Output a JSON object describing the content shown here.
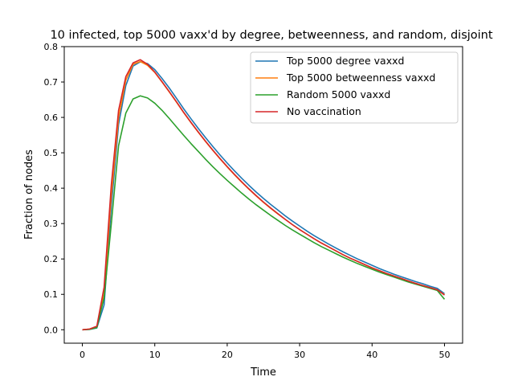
{
  "chart_data": {
    "type": "line",
    "title": "10 infected, top 5000 vaxx'd by degree, betweenness, and random, disjoint",
    "xlabel": "Time",
    "ylabel": "Fraction of nodes",
    "xlim": [
      -2.5,
      52.5
    ],
    "ylim": [
      -0.038,
      0.8
    ],
    "xticks": [
      0,
      10,
      20,
      30,
      40,
      50
    ],
    "yticks": [
      0.0,
      0.1,
      0.2,
      0.3,
      0.4,
      0.5,
      0.6,
      0.7,
      0.8
    ],
    "xtick_labels": [
      "0",
      "10",
      "20",
      "30",
      "40",
      "50"
    ],
    "ytick_labels": [
      "0.0",
      "0.1",
      "0.2",
      "0.3",
      "0.4",
      "0.5",
      "0.6",
      "0.7",
      "0.8"
    ],
    "grid": false,
    "legend_position": "upper right",
    "x": [
      0,
      1,
      2,
      3,
      4,
      5,
      6,
      7,
      8,
      9,
      10,
      11,
      12,
      13,
      14,
      15,
      16,
      17,
      18,
      19,
      20,
      21,
      22,
      23,
      24,
      25,
      26,
      27,
      28,
      29,
      30,
      31,
      32,
      33,
      34,
      35,
      36,
      37,
      38,
      39,
      40,
      41,
      42,
      43,
      44,
      45,
      46,
      47,
      48,
      49,
      50
    ],
    "series": [
      {
        "name": "Top 5000 degree vaxxd",
        "color": "#1f77b4",
        "values": [
          0.0,
          0.001,
          0.005,
          0.07,
          0.35,
          0.58,
          0.69,
          0.745,
          0.757,
          0.752,
          0.735,
          0.71,
          0.683,
          0.654,
          0.624,
          0.596,
          0.569,
          0.543,
          0.518,
          0.494,
          0.471,
          0.449,
          0.428,
          0.408,
          0.389,
          0.371,
          0.354,
          0.338,
          0.322,
          0.307,
          0.293,
          0.279,
          0.266,
          0.254,
          0.242,
          0.231,
          0.22,
          0.21,
          0.2,
          0.191,
          0.182,
          0.173,
          0.165,
          0.157,
          0.15,
          0.143,
          0.136,
          0.13,
          0.123,
          0.117,
          0.102
        ]
      },
      {
        "name": "Top 5000 betweenness vaxxd",
        "color": "#ff7f0e",
        "values": [
          0.0,
          0.002,
          0.008,
          0.1,
          0.38,
          0.6,
          0.705,
          0.75,
          0.758,
          0.747,
          0.727,
          0.7,
          0.672,
          0.643,
          0.613,
          0.585,
          0.558,
          0.532,
          0.507,
          0.483,
          0.46,
          0.438,
          0.417,
          0.397,
          0.378,
          0.36,
          0.343,
          0.327,
          0.312,
          0.297,
          0.283,
          0.27,
          0.257,
          0.245,
          0.234,
          0.223,
          0.212,
          0.202,
          0.193,
          0.184,
          0.175,
          0.167,
          0.159,
          0.152,
          0.145,
          0.138,
          0.131,
          0.125,
          0.119,
          0.113,
          0.099
        ]
      },
      {
        "name": "Random 5000 vaxxd",
        "color": "#2ca02c",
        "values": [
          0.0,
          0.001,
          0.006,
          0.09,
          0.3,
          0.52,
          0.612,
          0.652,
          0.661,
          0.655,
          0.64,
          0.62,
          0.597,
          0.573,
          0.549,
          0.526,
          0.504,
          0.482,
          0.461,
          0.441,
          0.422,
          0.404,
          0.386,
          0.369,
          0.353,
          0.338,
          0.323,
          0.309,
          0.295,
          0.282,
          0.27,
          0.258,
          0.246,
          0.235,
          0.225,
          0.215,
          0.205,
          0.196,
          0.187,
          0.179,
          0.171,
          0.163,
          0.156,
          0.149,
          0.142,
          0.135,
          0.129,
          0.123,
          0.117,
          0.111,
          0.086
        ]
      },
      {
        "name": "No vaccination",
        "color": "#d62728",
        "values": [
          0.0,
          0.002,
          0.01,
          0.12,
          0.41,
          0.62,
          0.715,
          0.754,
          0.763,
          0.75,
          0.728,
          0.701,
          0.673,
          0.644,
          0.614,
          0.586,
          0.559,
          0.533,
          0.508,
          0.484,
          0.461,
          0.439,
          0.418,
          0.398,
          0.379,
          0.361,
          0.344,
          0.328,
          0.312,
          0.297,
          0.283,
          0.27,
          0.257,
          0.245,
          0.234,
          0.223,
          0.212,
          0.202,
          0.193,
          0.184,
          0.175,
          0.167,
          0.159,
          0.152,
          0.145,
          0.138,
          0.131,
          0.125,
          0.119,
          0.113,
          0.098
        ]
      }
    ]
  }
}
